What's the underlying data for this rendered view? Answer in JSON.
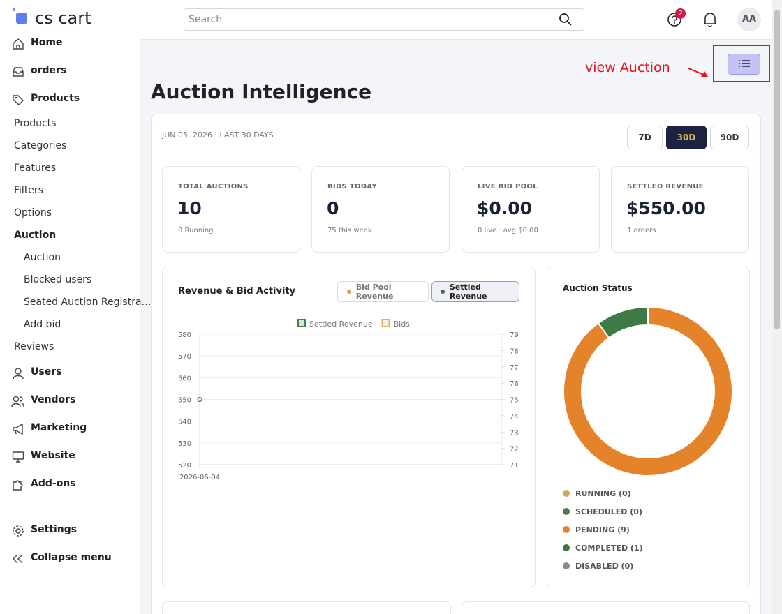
{
  "sidebar": {
    "logo": "cs cart",
    "main": [
      "Home",
      "orders",
      "Products"
    ],
    "products_sub": [
      "Products",
      "Categories",
      "Features",
      "Filters",
      "Options",
      "Auction"
    ],
    "auction_sub": [
      "Auction",
      "Blocked users",
      "Seated Auction Registra…",
      "Add bid"
    ],
    "reviews": "Reviews",
    "more": [
      "Users",
      "Vendors",
      "Marketing",
      "Website",
      "Add-ons"
    ],
    "bottom": [
      "Settings",
      "Collapse menu"
    ]
  },
  "header": {
    "search_placeholder": "Search",
    "help_badge": "2",
    "avatar": "AA"
  },
  "annotation": "view Auction",
  "page_title": "Auction Intelligence",
  "date_range": "JUN 05, 2026 · LAST 30 DAYS",
  "range_buttons": [
    "7D",
    "30D",
    "90D"
  ],
  "stats": [
    {
      "label": "TOTAL AUCTIONS",
      "value": "10",
      "sub": "0 Running"
    },
    {
      "label": "BIDS TODAY",
      "value": "0",
      "sub": "75 this week"
    },
    {
      "label": "LIVE BID POOL",
      "value": "$0.00",
      "sub": "0 live · avg $0.00"
    },
    {
      "label": "SETTLED REVENUE",
      "value": "$550.00",
      "sub": "1 orders"
    }
  ],
  "revenue_chart": {
    "type": "line",
    "title": "Revenue & Bid Activity",
    "toggles": [
      "Bid Pool Revenue",
      "Settled Revenue"
    ],
    "x": [
      "2026-06-04"
    ],
    "series": [
      {
        "name": "Settled Revenue",
        "color": "#4a7c4e",
        "values": [
          550
        ]
      },
      {
        "name": "Bids",
        "color": "#d4b36a",
        "values": [
          75
        ],
        "axis": "y2"
      }
    ],
    "ylim": [
      520,
      580
    ],
    "yticks": [
      520,
      530,
      540,
      550,
      560,
      570,
      580
    ],
    "y2lim": [
      71,
      79
    ],
    "y2ticks": [
      71,
      72,
      73,
      74,
      75,
      76,
      77,
      78,
      79
    ],
    "grid": true
  },
  "status_chart": {
    "type": "pie",
    "title": "Auction Status",
    "categories": [
      "RUNNING (0)",
      "SCHEDULED (0)",
      "PENDING (9)",
      "COMPLETED (1)",
      "DISABLED (0)"
    ],
    "values": [
      0,
      0,
      9,
      1,
      0
    ],
    "colors": [
      "#c9a95a",
      "#4d7a5e",
      "#e5832a",
      "#3d7a45",
      "#8a8a8a"
    ]
  }
}
